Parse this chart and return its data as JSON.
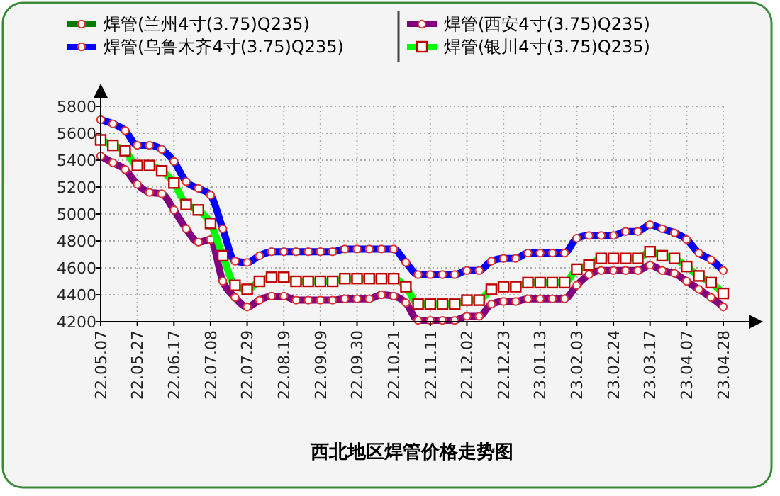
{
  "chart_data": {
    "type": "line",
    "title": "西北地区焊管价格走势图",
    "categories": [
      "22.05.07",
      null,
      null,
      "22.05.27",
      null,
      null,
      "22.06.17",
      null,
      null,
      "22.07.08",
      null,
      null,
      "22.07.29",
      null,
      null,
      "22.08.19",
      null,
      null,
      "22.09.09",
      null,
      null,
      "22.09.30",
      null,
      null,
      "22.10.21",
      null,
      null,
      "22.11.11",
      null,
      null,
      "22.12.02",
      null,
      null,
      "22.12.23",
      null,
      null,
      "23.01.13",
      null,
      null,
      "23.02.03",
      null,
      null,
      "23.02.24",
      null,
      null,
      "23.03.17",
      null,
      null,
      "23.04.07",
      null,
      null,
      "23.04.28"
    ],
    "series": [
      {
        "name": "焊管(兰州4寸(3.75)Q235)",
        "color": "#007a00",
        "marker": "circle",
        "values": [
          null,
          null,
          null,
          null,
          null,
          null,
          null,
          null,
          null,
          null,
          null,
          null,
          null,
          null,
          null,
          null,
          null,
          null,
          null,
          null,
          null,
          null,
          null,
          null,
          null,
          null,
          null,
          null,
          null,
          null,
          null,
          null,
          null,
          null,
          null,
          null,
          null,
          null,
          null,
          null,
          null,
          null,
          null,
          null,
          null,
          null,
          null,
          null,
          null,
          null,
          null,
          null
        ]
      },
      {
        "name": "焊管(乌鲁木齐4寸(3.75)Q235)",
        "color": "#0000ff",
        "marker": "circle",
        "values": [
          5700,
          5670,
          5620,
          5510,
          5510,
          5480,
          5390,
          5240,
          5190,
          5140,
          4890,
          4650,
          4640,
          4690,
          4720,
          4720,
          4720,
          4720,
          4720,
          4720,
          4740,
          4740,
          4740,
          4740,
          4740,
          4640,
          4550,
          4550,
          4550,
          4550,
          4580,
          4580,
          4650,
          4670,
          4670,
          4710,
          4710,
          4710,
          4710,
          4820,
          4840,
          4840,
          4840,
          4870,
          4870,
          4920,
          4890,
          4860,
          4810,
          4710,
          4660,
          4580
        ]
      },
      {
        "name": "焊管(西安4寸(3.75)Q235)",
        "color": "#800080",
        "marker": "circle",
        "values": [
          5430,
          5380,
          5330,
          5220,
          5160,
          5150,
          5030,
          4890,
          4790,
          4810,
          4500,
          4380,
          4310,
          4360,
          4390,
          4390,
          4360,
          4360,
          4360,
          4360,
          4370,
          4370,
          4370,
          4400,
          4390,
          4340,
          4210,
          4210,
          4210,
          4210,
          4240,
          4240,
          4330,
          4350,
          4350,
          4370,
          4370,
          4370,
          4370,
          4470,
          4550,
          4580,
          4580,
          4580,
          4580,
          4620,
          4580,
          4560,
          4500,
          4440,
          4380,
          4310
        ]
      },
      {
        "name": "焊管(银川4寸(3.75)Q235)",
        "color": "#00ff00",
        "marker": "square",
        "values": [
          5550,
          5510,
          5470,
          5360,
          5360,
          5320,
          5230,
          5070,
          5030,
          4930,
          4690,
          4470,
          4440,
          4500,
          4530,
          4530,
          4500,
          4500,
          4500,
          4500,
          4520,
          4520,
          4520,
          4520,
          4520,
          4460,
          4330,
          4330,
          4330,
          4330,
          4360,
          4360,
          4440,
          4460,
          4460,
          4490,
          4490,
          4490,
          4490,
          4590,
          4620,
          4670,
          4670,
          4670,
          4670,
          4720,
          4690,
          4670,
          4610,
          4540,
          4490,
          4410
        ]
      }
    ],
    "ylim": [
      4200,
      5800
    ],
    "yticks": [
      4200,
      4400,
      4600,
      4800,
      5000,
      5200,
      5400,
      5600,
      5800
    ],
    "grid": true,
    "legend": "top"
  }
}
